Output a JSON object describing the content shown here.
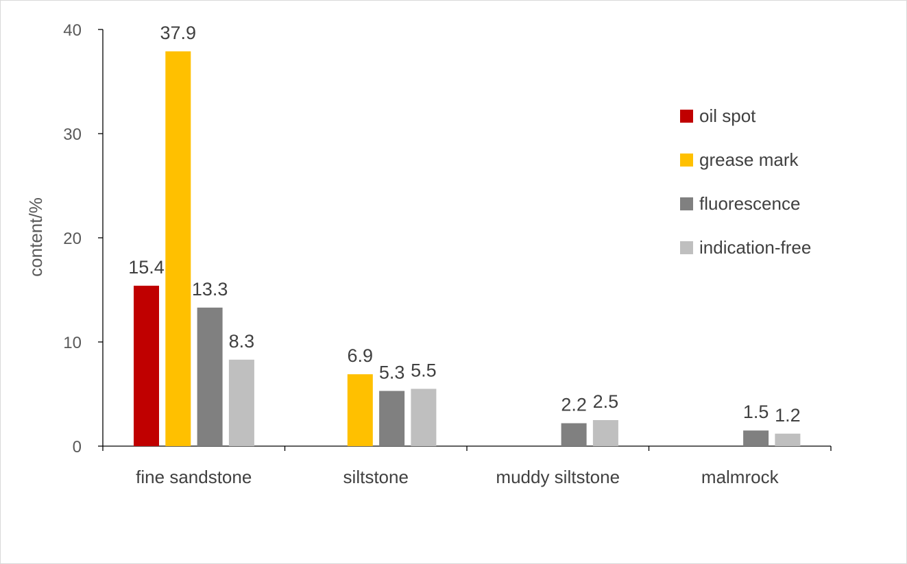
{
  "chart_data": {
    "type": "bar",
    "title": "",
    "xlabel": "",
    "ylabel": "content/%",
    "ylim": [
      0,
      40
    ],
    "yticks": [
      0,
      10,
      20,
      30,
      40
    ],
    "grid": false,
    "legend_position": "right",
    "categories": [
      "fine sandstone",
      "siltstone",
      "muddy siltstone",
      "malmrock"
    ],
    "series": [
      {
        "name": "oil spot",
        "color": "#c00000",
        "values": [
          15.4,
          null,
          null,
          null
        ]
      },
      {
        "name": "grease mark",
        "color": "#ffc000",
        "values": [
          37.9,
          6.9,
          null,
          null
        ]
      },
      {
        "name": "fluorescence",
        "color": "#808080",
        "values": [
          13.3,
          5.3,
          2.2,
          1.5
        ]
      },
      {
        "name": "indication-free",
        "color": "#bfbfbf",
        "values": [
          8.3,
          5.5,
          2.5,
          1.2
        ]
      }
    ]
  }
}
